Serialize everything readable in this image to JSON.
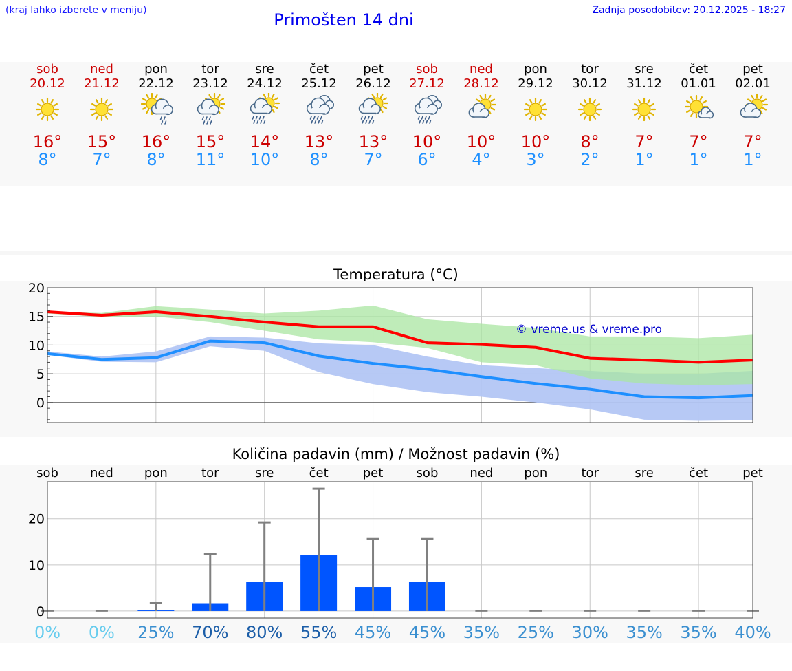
{
  "header": {
    "menu_hint": "(kraj lahko izberete v meniju)",
    "title": "Primošten 14 dni",
    "last_update": "Zadnja posodobitev: 20.12.2025 - 18:27"
  },
  "colors": {
    "weekend_red": "#cc0000",
    "tmax_red": "#cc0000",
    "tmin_blue": "#1e90ff",
    "max_line": "#ff0000",
    "min_line": "#1e8fff",
    "max_band": "#a9e6a2",
    "min_band": "#b3c6f4",
    "bar_blue": "#0055ff"
  },
  "forecast": [
    {
      "day": "sob",
      "date": "20.12",
      "icon": "sun-icon",
      "tmax": "16°",
      "tmin": "8°",
      "weekend": true
    },
    {
      "day": "ned",
      "date": "21.12",
      "icon": "sun-icon",
      "tmax": "15°",
      "tmin": "7°",
      "weekend": true
    },
    {
      "day": "pon",
      "date": "22.12",
      "icon": "sun-cloud-light-rain-icon",
      "tmax": "16°",
      "tmin": "8°",
      "weekend": false
    },
    {
      "day": "tor",
      "date": "23.12",
      "icon": "sun-cloud-rain-icon",
      "tmax": "15°",
      "tmin": "11°",
      "weekend": false
    },
    {
      "day": "sre",
      "date": "24.12",
      "icon": "sun-cloud-heavy-rain-icon",
      "tmax": "14°",
      "tmin": "10°",
      "weekend": false
    },
    {
      "day": "čet",
      "date": "25.12",
      "icon": "cloud-rain-icon",
      "tmax": "13°",
      "tmin": "8°",
      "weekend": false
    },
    {
      "day": "pet",
      "date": "26.12",
      "icon": "sun-cloud-heavy-rain-icon",
      "tmax": "13°",
      "tmin": "7°",
      "weekend": false
    },
    {
      "day": "sob",
      "date": "27.12",
      "icon": "cloud-rain-icon",
      "tmax": "10°",
      "tmin": "6°",
      "weekend": true
    },
    {
      "day": "ned",
      "date": "28.12",
      "icon": "sun-cloud-icon",
      "tmax": "10°",
      "tmin": "4°",
      "weekend": true
    },
    {
      "day": "pon",
      "date": "29.12",
      "icon": "sun-icon",
      "tmax": "10°",
      "tmin": "3°",
      "weekend": false
    },
    {
      "day": "tor",
      "date": "30.12",
      "icon": "sun-icon",
      "tmax": "8°",
      "tmin": "2°",
      "weekend": false
    },
    {
      "day": "sre",
      "date": "31.12",
      "icon": "sun-icon",
      "tmax": "7°",
      "tmin": "1°",
      "weekend": false
    },
    {
      "day": "čet",
      "date": "01.01",
      "icon": "sun-small-cloud-icon",
      "tmax": "7°",
      "tmin": "1°",
      "weekend": false
    },
    {
      "day": "pet",
      "date": "02.01",
      "icon": "sun-cloud-icon",
      "tmax": "7°",
      "tmin": "1°",
      "weekend": false
    }
  ],
  "chart_data": [
    {
      "type": "line",
      "title": "Temperatura (°C)",
      "watermark": "© vreme.us & vreme.pro",
      "ylim": [
        -3.5,
        20
      ],
      "yticks": [
        0,
        5,
        10,
        15,
        20
      ],
      "grid": true,
      "x": [
        0,
        1,
        2,
        3,
        4,
        5,
        6,
        7,
        8,
        9,
        10,
        11,
        12,
        13
      ],
      "series": [
        {
          "name": "max",
          "values": [
            15.8,
            15.2,
            15.8,
            15.0,
            14.0,
            13.2,
            13.2,
            10.4,
            10.1,
            9.6,
            7.7,
            7.4,
            7.0,
            7.4
          ]
        },
        {
          "name": "min",
          "values": [
            8.5,
            7.5,
            7.8,
            10.7,
            10.4,
            8.1,
            6.8,
            5.8,
            4.5,
            3.3,
            2.3,
            1.0,
            0.8,
            1.2
          ]
        },
        {
          "name": "max_upper",
          "values": [
            15.8,
            15.6,
            16.8,
            16.2,
            15.5,
            16.0,
            16.9,
            14.5,
            13.7,
            13.0,
            11.5,
            11.5,
            11.2,
            11.8
          ]
        },
        {
          "name": "max_lower",
          "values": [
            15.5,
            14.9,
            15.0,
            14.0,
            12.5,
            11.0,
            10.5,
            9.5,
            7.0,
            6.5,
            4.2,
            3.3,
            3.0,
            3.2
          ]
        },
        {
          "name": "min_upper",
          "values": [
            8.9,
            8.0,
            8.9,
            11.5,
            11.3,
            10.3,
            10.0,
            8.0,
            6.5,
            6.0,
            5.5,
            5.0,
            5.0,
            5.5
          ]
        },
        {
          "name": "min_lower",
          "values": [
            8.3,
            7.1,
            7.0,
            9.8,
            9.0,
            5.3,
            3.2,
            1.8,
            1.0,
            0.0,
            -1.2,
            -3.0,
            -3.2,
            -3.1
          ]
        }
      ]
    },
    {
      "type": "bar",
      "title": "Količina padavin (mm) / Možnost padavin (%)",
      "categories": [
        "sob",
        "ned",
        "pon",
        "tor",
        "sre",
        "čet",
        "pet",
        "sob",
        "ned",
        "pon",
        "tor",
        "sre",
        "čet",
        "pet"
      ],
      "values": [
        0,
        0,
        0.2,
        1.7,
        6.3,
        12.2,
        5.2,
        6.3,
        0,
        0,
        0,
        0,
        0,
        0
      ],
      "error_upper": [
        0,
        0,
        1.7,
        12.3,
        19.2,
        26.5,
        15.6,
        15.6,
        0,
        0,
        0,
        0,
        0,
        0
      ],
      "probability": [
        "0%",
        "0%",
        "25%",
        "70%",
        "80%",
        "55%",
        "45%",
        "45%",
        "35%",
        "25%",
        "30%",
        "35%",
        "35%",
        "40%"
      ],
      "probability_colors": [
        "#66ccee",
        "#66ccee",
        "#3a8fd0",
        "#1c5ea8",
        "#1c5ea8",
        "#1c5ea8",
        "#3a8fd0",
        "#3a8fd0",
        "#3a8fd0",
        "#3a8fd0",
        "#3a8fd0",
        "#3a8fd0",
        "#3a8fd0",
        "#3a8fd0"
      ],
      "ylim": [
        -1.5,
        28
      ],
      "yticks": [
        0,
        10,
        20
      ],
      "ytick_labels": [
        "0",
        "10",
        "20"
      ],
      "grid": true
    }
  ]
}
